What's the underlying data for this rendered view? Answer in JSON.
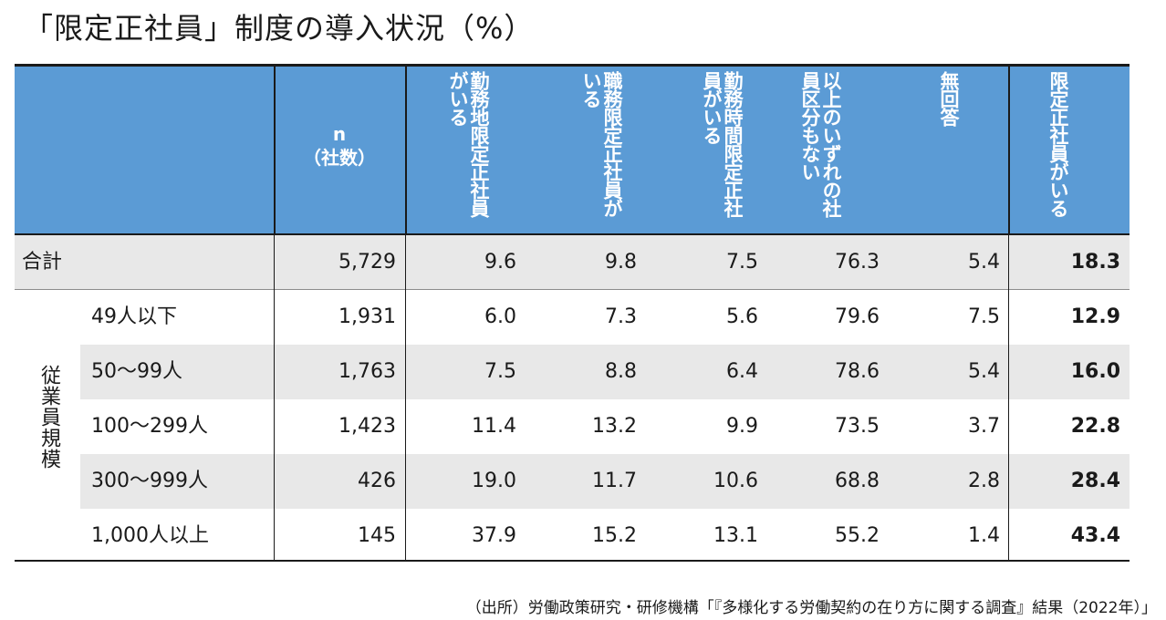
{
  "title": "「限定正社員」制度の導入状況（%）",
  "chart_data": {
    "type": "table",
    "columns": [
      "n（社数）",
      "勤務地限定正社員がいる",
      "職務限定正社員がいる",
      "勤務時間限定正社員がいる",
      "以上のいずれの社員区分もない",
      "無回答",
      "限定正社員がいる"
    ],
    "header": {
      "n_line1": "n",
      "n_line2": "（社数）",
      "col1": "勤務地限定正社員がいる",
      "col2": "職務限定正社員がいる",
      "col3": "勤務時間限定正社員がいる",
      "col4": "以上のいずれの社員区分もない",
      "col5": "無回答",
      "col6": "限定正社員がいる"
    },
    "group_label": "従業員規模",
    "rows": [
      {
        "label": "合計",
        "n": "5,729",
        "v1": "9.6",
        "v2": "9.8",
        "v3": "7.5",
        "v4": "76.3",
        "v5": "5.4",
        "v6": "18.3"
      },
      {
        "label": "49人以下",
        "n": "1,931",
        "v1": "6.0",
        "v2": "7.3",
        "v3": "5.6",
        "v4": "79.6",
        "v5": "7.5",
        "v6": "12.9"
      },
      {
        "label": "50～99人",
        "n": "1,763",
        "v1": "7.5",
        "v2": "8.8",
        "v3": "6.4",
        "v4": "78.6",
        "v5": "5.4",
        "v6": "16.0"
      },
      {
        "label": "100～299人",
        "n": "1,423",
        "v1": "11.4",
        "v2": "13.2",
        "v3": "9.9",
        "v4": "73.5",
        "v5": "3.7",
        "v6": "22.8"
      },
      {
        "label": "300～999人",
        "n": "426",
        "v1": "19.0",
        "v2": "11.7",
        "v3": "10.6",
        "v4": "68.8",
        "v5": "2.8",
        "v6": "28.4"
      },
      {
        "label": "1,000人以上",
        "n": "145",
        "v1": "37.9",
        "v2": "15.2",
        "v3": "13.1",
        "v4": "55.2",
        "v5": "1.4",
        "v6": "43.4"
      }
    ],
    "header_color": "#5b9bd5",
    "shade_color": "#e8e8e8"
  },
  "source": "（出所）労働政策研究・研修機構「『多様化する労働契約の在り方に関する調査』結果（2022年）」"
}
